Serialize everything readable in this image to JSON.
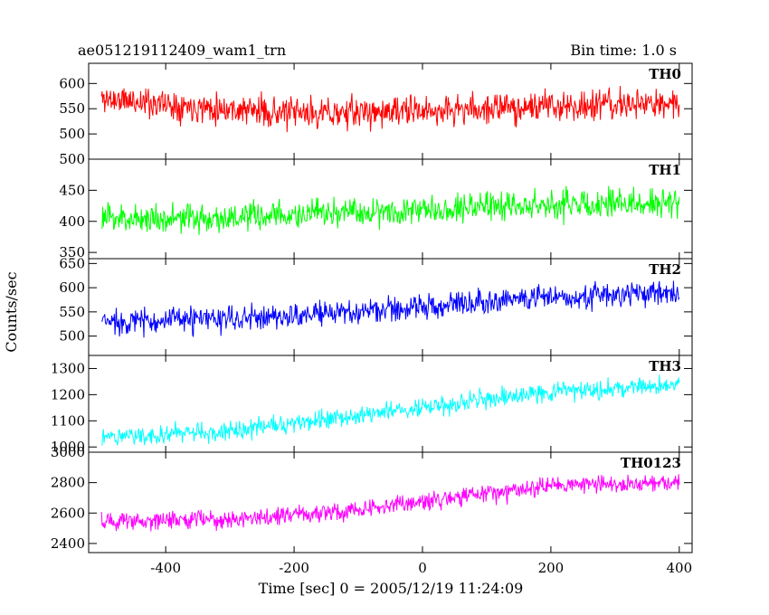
{
  "header": {
    "title": "ae051219112409_wam1_trn",
    "bin_time": "Bin time: 1.0 s"
  },
  "axes": {
    "xlabel": "Time [sec] 0 = 2005/12/19 11:24:09",
    "ylabel": "Counts/sec"
  },
  "chart_data": {
    "type": "line",
    "title": "ae051219112409_wam1_trn",
    "subtitle": "Bin time: 1.0 s",
    "xlabel": "Time [sec] 0 = 2005/12/19 11:24:09",
    "ylabel": "Counts/sec",
    "xlim": [
      -520,
      420
    ],
    "x_ticks": [
      -400,
      -200,
      0,
      200,
      400
    ],
    "x_range": [
      -500,
      400
    ],
    "x_step": 1,
    "grid": false,
    "legend": "none",
    "series": [
      {
        "name": "TH0",
        "color": "#ff0000",
        "ylim": [
          450,
          640
        ],
        "y_ticks": [
          500,
          550,
          600
        ],
        "y_tick_labels": [
          "500",
          "550",
          "600"
        ],
        "trend": [
          [
            -500,
            570
          ],
          [
            -300,
            550
          ],
          [
            -200,
            540
          ],
          [
            0,
            545
          ],
          [
            100,
            550
          ],
          [
            200,
            555
          ],
          [
            400,
            560
          ]
        ],
        "noise_amplitude": 45,
        "seed": 11
      },
      {
        "name": "TH1",
        "color": "#00ff00",
        "ylim": [
          340,
          500
        ],
        "y_ticks": [
          350,
          400,
          450,
          500
        ],
        "y_tick_labels": [
          "350",
          "400",
          "450",
          "500"
        ],
        "trend": [
          [
            -500,
            405
          ],
          [
            -300,
            405
          ],
          [
            -100,
            415
          ],
          [
            100,
            425
          ],
          [
            400,
            430
          ]
        ],
        "noise_amplitude": 35,
        "seed": 23
      },
      {
        "name": "TH2",
        "color": "#0000ff",
        "ylim": [
          460,
          660
        ],
        "y_ticks": [
          500,
          550,
          600,
          650
        ],
        "y_tick_labels": [
          "500",
          "550",
          "600",
          "650"
        ],
        "trend": [
          [
            -500,
            530
          ],
          [
            -300,
            535
          ],
          [
            -100,
            550
          ],
          [
            0,
            560
          ],
          [
            100,
            575
          ],
          [
            200,
            580
          ],
          [
            400,
            590
          ]
        ],
        "noise_amplitude": 40,
        "seed": 37
      },
      {
        "name": "TH3",
        "color": "#00ffff",
        "ylim": [
          980,
          1350
        ],
        "y_ticks": [
          1000,
          1100,
          1200,
          1300
        ],
        "y_tick_labels": [
          "1000",
          "1100",
          "1200",
          "1300"
        ],
        "trend": [
          [
            -500,
            1040
          ],
          [
            -300,
            1060
          ],
          [
            -100,
            1120
          ],
          [
            0,
            1150
          ],
          [
            100,
            1180
          ],
          [
            200,
            1210
          ],
          [
            400,
            1240
          ]
        ],
        "noise_amplitude": 55,
        "seed": 51
      },
      {
        "name": "TH0123",
        "color": "#ff00ff",
        "ylim": [
          2340,
          3000
        ],
        "y_ticks": [
          2400,
          2600,
          2800,
          3000
        ],
        "y_tick_labels": [
          "2400",
          "2600",
          "2800",
          "3000"
        ],
        "trend": [
          [
            -500,
            2540
          ],
          [
            -300,
            2560
          ],
          [
            -100,
            2620
          ],
          [
            0,
            2680
          ],
          [
            100,
            2720
          ],
          [
            200,
            2780
          ],
          [
            400,
            2810
          ]
        ],
        "noise_amplitude": 90,
        "seed": 73
      }
    ]
  }
}
